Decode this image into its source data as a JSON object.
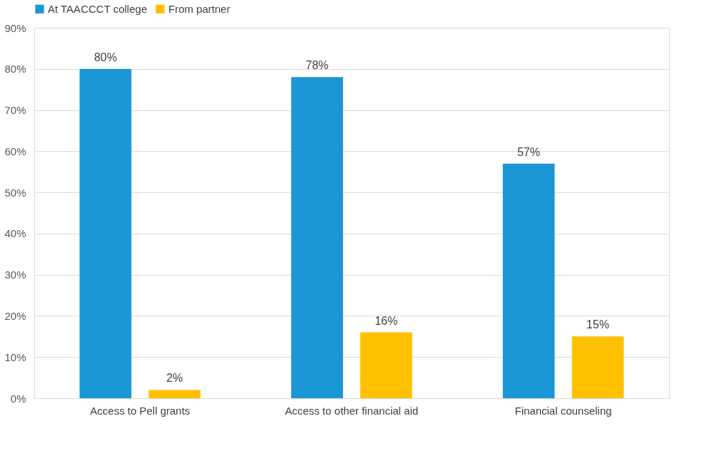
{
  "chart_data": {
    "type": "bar",
    "categories": [
      "Access to Pell grants",
      "Access to other financial aid",
      "Financial counseling"
    ],
    "series": [
      {
        "name": "At TAACCCT college",
        "color": "#1a96d4",
        "values": [
          80,
          78,
          57
        ],
        "value_labels": [
          "80%",
          "78%",
          "57%"
        ]
      },
      {
        "name": "From partner",
        "color": "#ffc000",
        "values": [
          2,
          16,
          15
        ],
        "value_labels": [
          "2%",
          "16%",
          "15%"
        ]
      }
    ],
    "ylim": [
      0,
      90
    ],
    "yticks": [
      {
        "value": 0,
        "label": "0%"
      },
      {
        "value": 10,
        "label": "10%"
      },
      {
        "value": 20,
        "label": "20%"
      },
      {
        "value": 30,
        "label": "30%"
      },
      {
        "value": 40,
        "label": "40%"
      },
      {
        "value": 50,
        "label": "50%"
      },
      {
        "value": 60,
        "label": "60%"
      },
      {
        "value": 70,
        "label": "70%"
      },
      {
        "value": 80,
        "label": "80%"
      },
      {
        "value": 90,
        "label": "90%"
      }
    ],
    "grid": "y",
    "legend": "top"
  }
}
